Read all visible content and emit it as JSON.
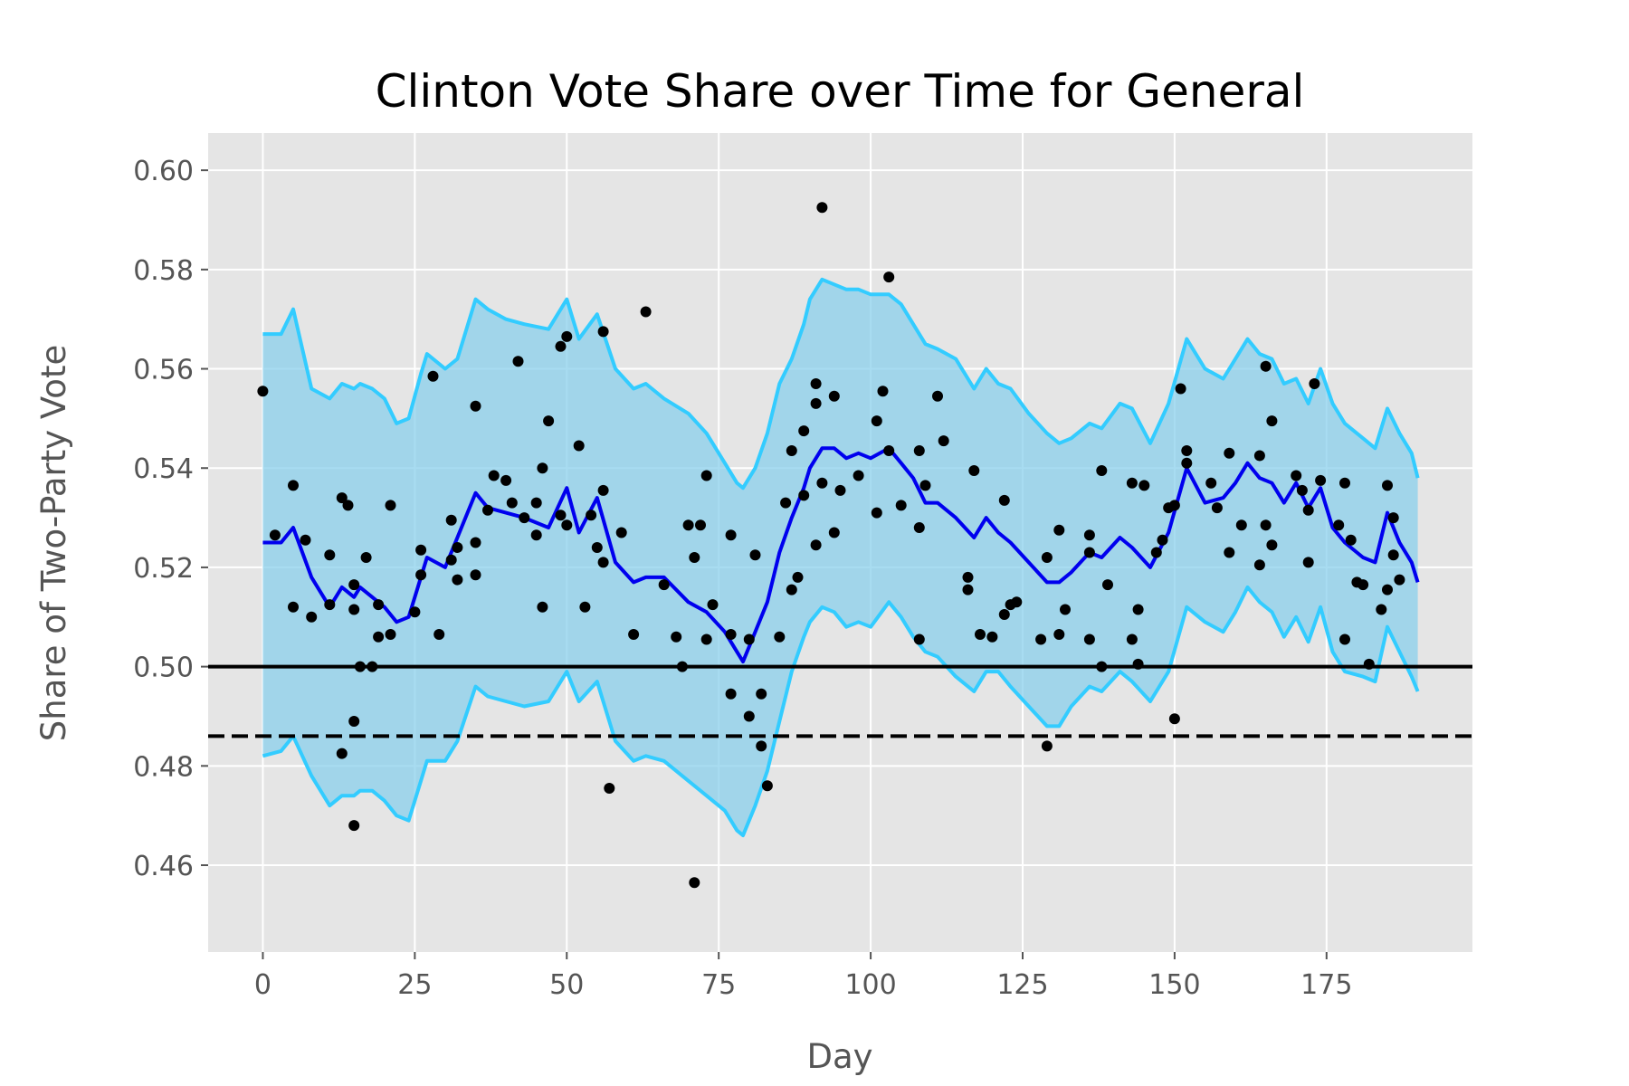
{
  "chart_data": {
    "type": "scatter",
    "title": "Clinton Vote Share over Time for General",
    "xlabel": "Day",
    "ylabel": "Share of Two-Party Vote",
    "xlim": [
      -9,
      199
    ],
    "ylim": [
      0.4425,
      0.6075
    ],
    "xticks": [
      0,
      25,
      50,
      75,
      100,
      125,
      150,
      175
    ],
    "yticks": [
      0.46,
      0.48,
      0.5,
      0.52,
      0.54,
      0.56,
      0.58,
      0.6
    ],
    "xtick_labels": [
      "0",
      "25",
      "50",
      "75",
      "100",
      "125",
      "150",
      "175"
    ],
    "ytick_labels": [
      "0.46",
      "0.48",
      "0.50",
      "0.52",
      "0.54",
      "0.56",
      "0.58",
      "0.60"
    ],
    "grid": true,
    "colors": {
      "background": "#e5e5e5",
      "grid": "#ffffff",
      "band_fill": "#87ceeb",
      "band_edge": "#33ccff",
      "mean_line": "#0000ee",
      "points": "#000000",
      "reference": "#000000"
    },
    "reference_lines": [
      {
        "y": 0.5,
        "style": "solid"
      },
      {
        "y": 0.486,
        "style": "dashed"
      }
    ],
    "series": [
      {
        "kind": "mean_line",
        "x": [
          0,
          3,
          5,
          8,
          11,
          13,
          15,
          16,
          18,
          20,
          22,
          24,
          26,
          27,
          30,
          32,
          35,
          37,
          40,
          43,
          47,
          50,
          52,
          55,
          58,
          61,
          63,
          66,
          70,
          73,
          76,
          78,
          79,
          81,
          83,
          85,
          87,
          89,
          90,
          92,
          94,
          96,
          98,
          100,
          103,
          105,
          107,
          109,
          111,
          114,
          117,
          119,
          121,
          123,
          126,
          129,
          131,
          133,
          136,
          138,
          141,
          143,
          146,
          149,
          152,
          155,
          158,
          160,
          162,
          164,
          166,
          168,
          170,
          172,
          174,
          176,
          178,
          181,
          183,
          185,
          187,
          189,
          190
        ],
        "y": [
          0.525,
          0.525,
          0.528,
          0.518,
          0.512,
          0.516,
          0.514,
          0.516,
          0.514,
          0.512,
          0.509,
          0.51,
          0.518,
          0.522,
          0.52,
          0.526,
          0.535,
          0.532,
          0.531,
          0.53,
          0.528,
          0.536,
          0.527,
          0.534,
          0.521,
          0.517,
          0.518,
          0.518,
          0.513,
          0.511,
          0.507,
          0.503,
          0.501,
          0.507,
          0.513,
          0.523,
          0.53,
          0.536,
          0.54,
          0.544,
          0.544,
          0.542,
          0.543,
          0.542,
          0.544,
          0.541,
          0.538,
          0.533,
          0.533,
          0.53,
          0.526,
          0.53,
          0.527,
          0.525,
          0.521,
          0.517,
          0.517,
          0.519,
          0.523,
          0.522,
          0.526,
          0.524,
          0.52,
          0.527,
          0.54,
          0.533,
          0.534,
          0.537,
          0.541,
          0.538,
          0.537,
          0.533,
          0.537,
          0.532,
          0.536,
          0.528,
          0.525,
          0.522,
          0.521,
          0.531,
          0.525,
          0.521,
          0.517
        ]
      },
      {
        "kind": "band",
        "x": [
          0,
          3,
          5,
          8,
          11,
          13,
          15,
          16,
          18,
          20,
          22,
          24,
          26,
          27,
          30,
          32,
          35,
          37,
          40,
          43,
          47,
          50,
          52,
          55,
          58,
          61,
          63,
          66,
          70,
          73,
          76,
          78,
          79,
          81,
          83,
          85,
          87,
          89,
          90,
          92,
          94,
          96,
          98,
          100,
          103,
          105,
          107,
          109,
          111,
          114,
          117,
          119,
          121,
          123,
          126,
          129,
          131,
          133,
          136,
          138,
          141,
          143,
          146,
          149,
          152,
          155,
          158,
          160,
          162,
          164,
          166,
          168,
          170,
          172,
          174,
          176,
          178,
          181,
          183,
          185,
          187,
          189,
          190
        ],
        "upper": [
          0.567,
          0.567,
          0.572,
          0.556,
          0.554,
          0.557,
          0.556,
          0.557,
          0.556,
          0.554,
          0.549,
          0.55,
          0.559,
          0.563,
          0.56,
          0.562,
          0.574,
          0.572,
          0.57,
          0.569,
          0.568,
          0.574,
          0.566,
          0.571,
          0.56,
          0.556,
          0.557,
          0.554,
          0.551,
          0.547,
          0.541,
          0.537,
          0.536,
          0.54,
          0.547,
          0.557,
          0.562,
          0.569,
          0.574,
          0.578,
          0.577,
          0.576,
          0.576,
          0.575,
          0.575,
          0.573,
          0.569,
          0.565,
          0.564,
          0.562,
          0.556,
          0.56,
          0.557,
          0.556,
          0.551,
          0.547,
          0.545,
          0.546,
          0.549,
          0.548,
          0.553,
          0.552,
          0.545,
          0.553,
          0.566,
          0.56,
          0.558,
          0.562,
          0.566,
          0.563,
          0.562,
          0.557,
          0.558,
          0.553,
          0.56,
          0.553,
          0.549,
          0.546,
          0.544,
          0.552,
          0.547,
          0.543,
          0.538
        ],
        "lower": [
          0.482,
          0.483,
          0.486,
          0.478,
          0.472,
          0.474,
          0.474,
          0.475,
          0.475,
          0.473,
          0.47,
          0.469,
          0.477,
          0.481,
          0.481,
          0.485,
          0.496,
          0.494,
          0.493,
          0.492,
          0.493,
          0.499,
          0.493,
          0.497,
          0.485,
          0.481,
          0.482,
          0.481,
          0.477,
          0.474,
          0.471,
          0.467,
          0.466,
          0.472,
          0.479,
          0.489,
          0.499,
          0.506,
          0.509,
          0.512,
          0.511,
          0.508,
          0.509,
          0.508,
          0.513,
          0.51,
          0.506,
          0.503,
          0.502,
          0.498,
          0.495,
          0.499,
          0.499,
          0.496,
          0.492,
          0.488,
          0.488,
          0.492,
          0.496,
          0.495,
          0.499,
          0.497,
          0.493,
          0.499,
          0.512,
          0.509,
          0.507,
          0.511,
          0.516,
          0.513,
          0.511,
          0.506,
          0.51,
          0.505,
          0.512,
          0.503,
          0.499,
          0.498,
          0.497,
          0.508,
          0.503,
          0.498,
          0.495
        ]
      },
      {
        "kind": "points",
        "points": [
          [
            0,
            0.5555
          ],
          [
            2,
            0.5265
          ],
          [
            5,
            0.5365
          ],
          [
            5,
            0.512
          ],
          [
            7,
            0.5255
          ],
          [
            8,
            0.51
          ],
          [
            11,
            0.5225
          ],
          [
            11,
            0.5125
          ],
          [
            13,
            0.534
          ],
          [
            13,
            0.4825
          ],
          [
            14,
            0.5325
          ],
          [
            15,
            0.5165
          ],
          [
            15,
            0.5115
          ],
          [
            15,
            0.489
          ],
          [
            15,
            0.468
          ],
          [
            16,
            0.5
          ],
          [
            17,
            0.522
          ],
          [
            18,
            0.5
          ],
          [
            19,
            0.506
          ],
          [
            19,
            0.5125
          ],
          [
            21,
            0.5325
          ],
          [
            21,
            0.5065
          ],
          [
            25,
            0.511
          ],
          [
            26,
            0.5185
          ],
          [
            26,
            0.5235
          ],
          [
            28,
            0.5585
          ],
          [
            29,
            0.5065
          ],
          [
            31,
            0.5215
          ],
          [
            31,
            0.5295
          ],
          [
            32,
            0.5175
          ],
          [
            32,
            0.524
          ],
          [
            35,
            0.5525
          ],
          [
            35,
            0.525
          ],
          [
            35,
            0.5185
          ],
          [
            37,
            0.5315
          ],
          [
            38,
            0.5385
          ],
          [
            40,
            0.5375
          ],
          [
            41,
            0.533
          ],
          [
            42,
            0.5615
          ],
          [
            43,
            0.53
          ],
          [
            45,
            0.5265
          ],
          [
            45,
            0.533
          ],
          [
            46,
            0.54
          ],
          [
            46,
            0.512
          ],
          [
            47,
            0.5495
          ],
          [
            49,
            0.5645
          ],
          [
            49,
            0.5305
          ],
          [
            50,
            0.5665
          ],
          [
            50,
            0.5285
          ],
          [
            52,
            0.5445
          ],
          [
            53,
            0.512
          ],
          [
            54,
            0.5305
          ],
          [
            55,
            0.524
          ],
          [
            56,
            0.5675
          ],
          [
            56,
            0.5355
          ],
          [
            56,
            0.521
          ],
          [
            57,
            0.4755
          ],
          [
            59,
            0.527
          ],
          [
            61,
            0.5065
          ],
          [
            63,
            0.5715
          ],
          [
            66,
            0.5165
          ],
          [
            68,
            0.506
          ],
          [
            69,
            0.5
          ],
          [
            70,
            0.5285
          ],
          [
            71,
            0.522
          ],
          [
            71,
            0.4565
          ],
          [
            72,
            0.5285
          ],
          [
            73,
            0.5385
          ],
          [
            73,
            0.5055
          ],
          [
            74,
            0.5125
          ],
          [
            77,
            0.5265
          ],
          [
            77,
            0.4945
          ],
          [
            77,
            0.5065
          ],
          [
            80,
            0.49
          ],
          [
            80,
            0.5055
          ],
          [
            81,
            0.5225
          ],
          [
            82,
            0.4945
          ],
          [
            82,
            0.484
          ],
          [
            83,
            0.476
          ],
          [
            85,
            0.506
          ],
          [
            86,
            0.533
          ],
          [
            87,
            0.5435
          ],
          [
            87,
            0.5155
          ],
          [
            88,
            0.518
          ],
          [
            89,
            0.5345
          ],
          [
            89,
            0.5475
          ],
          [
            91,
            0.557
          ],
          [
            91,
            0.553
          ],
          [
            91,
            0.5245
          ],
          [
            92,
            0.5925
          ],
          [
            92,
            0.537
          ],
          [
            94,
            0.5545
          ],
          [
            94,
            0.527
          ],
          [
            95,
            0.5355
          ],
          [
            98,
            0.5385
          ],
          [
            101,
            0.5495
          ],
          [
            101,
            0.531
          ],
          [
            102,
            0.5555
          ],
          [
            103,
            0.5785
          ],
          [
            103,
            0.5435
          ],
          [
            105,
            0.5325
          ],
          [
            108,
            0.5435
          ],
          [
            108,
            0.528
          ],
          [
            108,
            0.5055
          ],
          [
            109,
            0.5365
          ],
          [
            111,
            0.5545
          ],
          [
            112,
            0.5455
          ],
          [
            116,
            0.518
          ],
          [
            116,
            0.5155
          ],
          [
            117,
            0.5395
          ],
          [
            118,
            0.5065
          ],
          [
            120,
            0.506
          ],
          [
            122,
            0.5335
          ],
          [
            122,
            0.5105
          ],
          [
            123,
            0.5125
          ],
          [
            124,
            0.513
          ],
          [
            128,
            0.5055
          ],
          [
            129,
            0.522
          ],
          [
            129,
            0.484
          ],
          [
            131,
            0.5275
          ],
          [
            131,
            0.5065
          ],
          [
            132,
            0.5115
          ],
          [
            136,
            0.5265
          ],
          [
            136,
            0.523
          ],
          [
            136,
            0.5055
          ],
          [
            138,
            0.5395
          ],
          [
            138,
            0.5
          ],
          [
            139,
            0.5165
          ],
          [
            143,
            0.537
          ],
          [
            143,
            0.5055
          ],
          [
            144,
            0.5005
          ],
          [
            144,
            0.5115
          ],
          [
            145,
            0.5365
          ],
          [
            147,
            0.523
          ],
          [
            148,
            0.5255
          ],
          [
            149,
            0.532
          ],
          [
            150,
            0.5325
          ],
          [
            150,
            0.4895
          ],
          [
            151,
            0.556
          ],
          [
            152,
            0.5435
          ],
          [
            152,
            0.541
          ],
          [
            156,
            0.537
          ],
          [
            157,
            0.532
          ],
          [
            159,
            0.543
          ],
          [
            159,
            0.523
          ],
          [
            161,
            0.5285
          ],
          [
            164,
            0.5425
          ],
          [
            164,
            0.5205
          ],
          [
            165,
            0.5605
          ],
          [
            165,
            0.5285
          ],
          [
            166,
            0.5495
          ],
          [
            166,
            0.5245
          ],
          [
            170,
            0.5385
          ],
          [
            171,
            0.5355
          ],
          [
            172,
            0.5315
          ],
          [
            172,
            0.521
          ],
          [
            173,
            0.557
          ],
          [
            174,
            0.5375
          ],
          [
            177,
            0.5285
          ],
          [
            178,
            0.5055
          ],
          [
            178,
            0.537
          ],
          [
            179,
            0.5255
          ],
          [
            180,
            0.517
          ],
          [
            181,
            0.5165
          ],
          [
            182,
            0.5005
          ],
          [
            184,
            0.5115
          ],
          [
            185,
            0.5365
          ],
          [
            185,
            0.5155
          ],
          [
            186,
            0.5225
          ],
          [
            186,
            0.53
          ],
          [
            187,
            0.5175
          ]
        ]
      }
    ]
  }
}
